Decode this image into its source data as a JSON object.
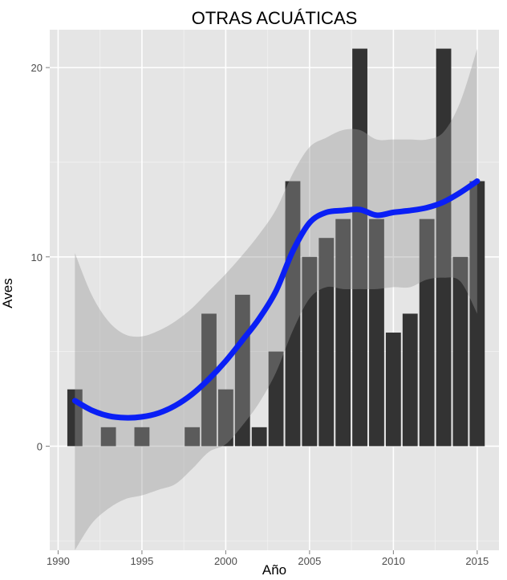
{
  "chart_data": {
    "type": "bar",
    "title": "OTRAS ACUÁTICAS",
    "xlabel": "Año",
    "ylabel": "Aves",
    "xlim": [
      1989.5,
      2016.3
    ],
    "ylim": [
      -5.5,
      22
    ],
    "x_ticks": [
      1990,
      1995,
      2000,
      2005,
      2010,
      2015
    ],
    "y_ticks": [
      0,
      10,
      20
    ],
    "grid": true,
    "background": "#e5e5e5",
    "bar_color": "#333333",
    "smooth_color": "#0a1ff5",
    "band_color": "#999999",
    "bars": {
      "x": [
        1991,
        1993,
        1995,
        1998,
        1999,
        2000,
        2001,
        2002,
        2003,
        2004,
        2005,
        2006,
        2007,
        2008,
        2009,
        2010,
        2011,
        2012,
        2013,
        2014,
        2015
      ],
      "values": [
        3,
        1,
        1,
        1,
        7,
        3,
        8,
        1,
        5,
        14,
        10,
        11,
        12,
        21,
        12,
        6,
        7,
        12,
        21,
        10,
        14
      ]
    },
    "smooth": {
      "x": [
        1991,
        1992,
        1993,
        1994,
        1995,
        1996,
        1997,
        1998,
        1999,
        2000,
        2001,
        2002,
        2003,
        2004,
        2005,
        2006,
        2007,
        2008,
        2009,
        2010,
        2011,
        2012,
        2013,
        2014,
        2015
      ],
      "y": [
        2.4,
        1.9,
        1.6,
        1.5,
        1.55,
        1.75,
        2.15,
        2.75,
        3.55,
        4.5,
        5.6,
        6.75,
        8.2,
        10.3,
        11.8,
        12.35,
        12.45,
        12.5,
        12.2,
        12.35,
        12.45,
        12.6,
        12.9,
        13.4,
        14.0
      ],
      "upper": [
        10.2,
        8.0,
        6.6,
        5.9,
        5.8,
        6.1,
        6.6,
        7.3,
        8.2,
        9.1,
        10.1,
        11.2,
        12.5,
        14.4,
        15.8,
        16.3,
        16.7,
        16.7,
        16.2,
        16.2,
        16.2,
        16.2,
        16.6,
        18.2,
        21.0
      ],
      "lower": [
        -5.5,
        -4.1,
        -3.3,
        -2.8,
        -2.6,
        -2.3,
        -2.0,
        -1.2,
        -0.3,
        0.1,
        1.1,
        2.3,
        3.9,
        6.1,
        7.8,
        8.4,
        8.3,
        8.3,
        8.3,
        8.4,
        8.4,
        8.8,
        8.9,
        8.7,
        7.0
      ]
    }
  }
}
